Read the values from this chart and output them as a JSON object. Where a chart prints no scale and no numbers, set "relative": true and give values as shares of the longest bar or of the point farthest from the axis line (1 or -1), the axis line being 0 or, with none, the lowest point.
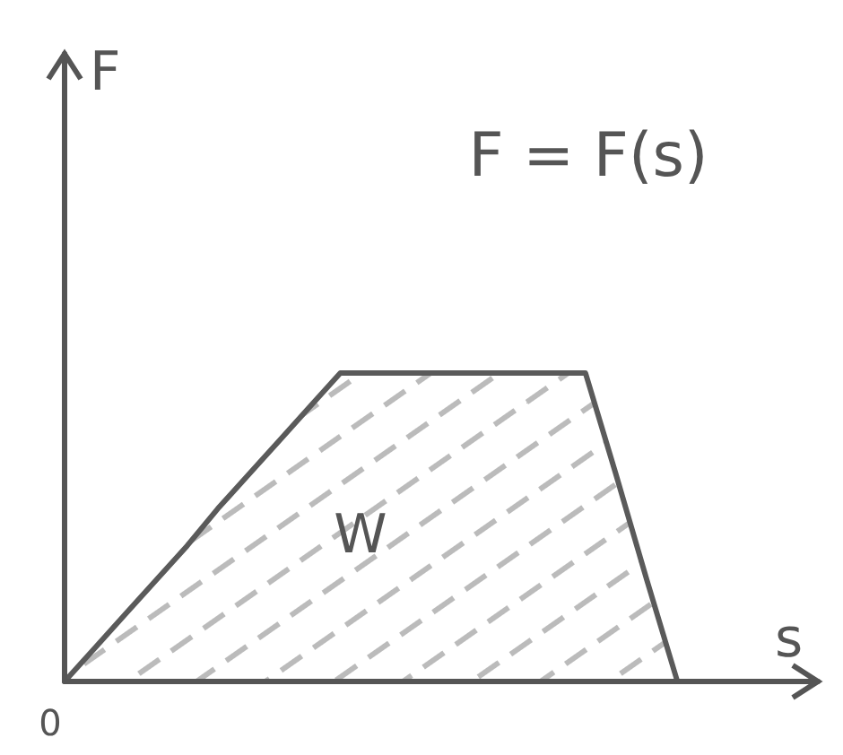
{
  "chart_data": {
    "type": "area",
    "relative": true,
    "xlabel": "s",
    "ylabel": "F",
    "color": "#5a5a5a",
    "categories": [
      null,
      null,
      null,
      null,
      null,
      null,
      null,
      null,
      null,
      null,
      null,
      null,
      null,
      null,
      null,
      null,
      null,
      null,
      null,
      null,
      null,
      null,
      null,
      null,
      null
    ],
    "values": [
      0,
      0.11,
      0.22,
      0.33,
      0.44,
      0.56,
      0.67,
      0.78,
      0.89,
      1,
      1,
      1,
      1,
      1,
      1,
      1,
      1,
      1,
      0.67,
      0.33,
      0,
      null,
      null,
      null,
      null
    ],
    "annotations": [
      "F = F(s)",
      "W",
      "0"
    ]
  }
}
